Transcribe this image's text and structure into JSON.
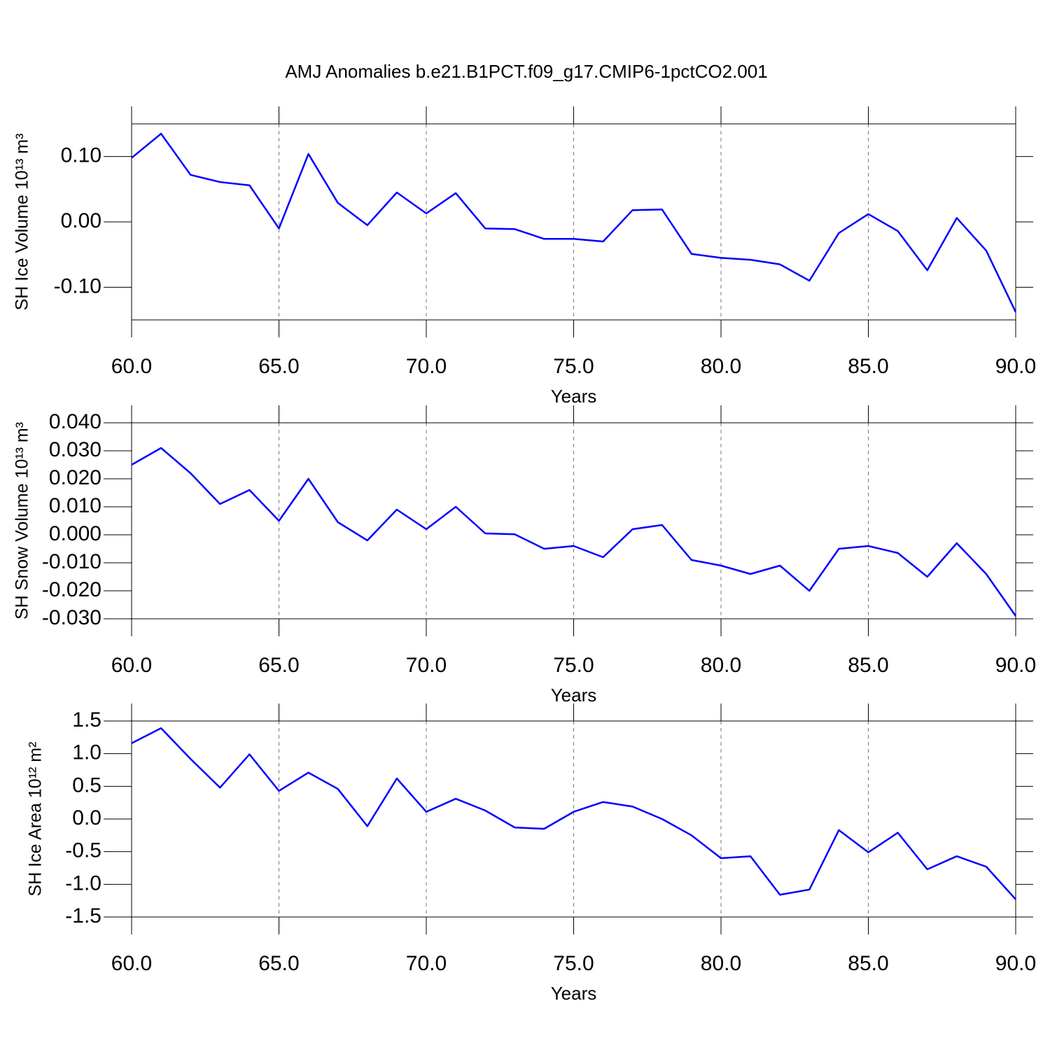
{
  "chart_data": [
    {
      "type": "line",
      "title": "AMJ Anomalies b.e21.B1PCT.f09_g17.CMIP6-1pctCO2.001",
      "ylabel": "SH Ice Volume 10¹³ m³",
      "xlabel": "Years",
      "color": "#0000ff",
      "grid": true,
      "x": [
        60,
        61,
        62,
        63,
        64,
        65,
        66,
        67,
        68,
        69,
        70,
        71,
        72,
        73,
        74,
        75,
        76,
        77,
        78,
        79,
        80,
        81,
        82,
        83,
        84,
        85,
        86,
        87,
        88,
        89,
        90
      ],
      "values": [
        0.098,
        0.135,
        0.072,
        0.061,
        0.056,
        -0.01,
        0.104,
        0.029,
        -0.005,
        0.045,
        0.013,
        0.044,
        -0.01,
        -0.011,
        -0.026,
        -0.026,
        -0.03,
        0.018,
        0.019,
        -0.049,
        -0.055,
        -0.058,
        -0.065,
        -0.09,
        -0.017,
        0.012,
        -0.014,
        -0.074,
        0.006,
        -0.044,
        -0.138
      ],
      "xlim": [
        60,
        90
      ],
      "xticks": [
        {
          "value": 60,
          "label": "60.0"
        },
        {
          "value": 65,
          "label": "65.0"
        },
        {
          "value": 70,
          "label": "70.0"
        },
        {
          "value": 75,
          "label": "75.0"
        },
        {
          "value": 80,
          "label": "80.0"
        },
        {
          "value": 85,
          "label": "85.0"
        },
        {
          "value": 90,
          "label": "90.0"
        }
      ],
      "ylim": [
        -0.15,
        0.15
      ],
      "yticks": [
        {
          "value": 0.1,
          "label": "0.10"
        },
        {
          "value": 0,
          "label": "0.00"
        },
        {
          "value": -0.1,
          "label": "-0.10"
        }
      ]
    },
    {
      "type": "line",
      "ylabel": "SH Snow Volume 10¹³ m³",
      "xlabel": "Years",
      "color": "#0000ff",
      "grid": true,
      "x": [
        60,
        61,
        62,
        63,
        64,
        65,
        66,
        67,
        68,
        69,
        70,
        71,
        72,
        73,
        74,
        75,
        76,
        77,
        78,
        79,
        80,
        81,
        82,
        83,
        84,
        85,
        86,
        87,
        88,
        89,
        90
      ],
      "values": [
        0.025,
        0.031,
        0.022,
        0.011,
        0.016,
        0.005,
        0.02,
        0.0045,
        -0.002,
        0.009,
        0.002,
        0.01,
        0.0005,
        0.0002,
        -0.005,
        -0.004,
        -0.008,
        0.002,
        0.0035,
        -0.009,
        -0.011,
        -0.014,
        -0.011,
        -0.02,
        -0.005,
        -0.004,
        -0.0065,
        -0.015,
        -0.003,
        -0.014,
        -0.029
      ],
      "xlim": [
        60,
        90
      ],
      "xticks": [
        {
          "value": 60,
          "label": "60.0"
        },
        {
          "value": 65,
          "label": "65.0"
        },
        {
          "value": 70,
          "label": "70.0"
        },
        {
          "value": 75,
          "label": "75.0"
        },
        {
          "value": 80,
          "label": "80.0"
        },
        {
          "value": 85,
          "label": "85.0"
        },
        {
          "value": 90,
          "label": "90.0"
        }
      ],
      "ylim": [
        -0.03,
        0.04
      ],
      "yticks": [
        {
          "value": 0.04,
          "label": "0.040"
        },
        {
          "value": 0.03,
          "label": "0.030"
        },
        {
          "value": 0.02,
          "label": "0.020"
        },
        {
          "value": 0.01,
          "label": "0.010"
        },
        {
          "value": 0,
          "label": "0.000"
        },
        {
          "value": -0.01,
          "label": "-0.010"
        },
        {
          "value": -0.02,
          "label": "-0.020"
        },
        {
          "value": -0.03,
          "label": "-0.030"
        }
      ]
    },
    {
      "type": "line",
      "ylabel": "SH Ice Area 10¹² m²",
      "xlabel": "Years",
      "color": "#0000ff",
      "grid": true,
      "x": [
        60,
        61,
        62,
        63,
        64,
        65,
        66,
        67,
        68,
        69,
        70,
        71,
        72,
        73,
        74,
        75,
        76,
        77,
        78,
        79,
        80,
        81,
        82,
        83,
        84,
        85,
        86,
        87,
        88,
        89,
        90
      ],
      "values": [
        1.16,
        1.39,
        0.92,
        0.48,
        0.99,
        0.43,
        0.71,
        0.46,
        -0.11,
        0.62,
        0.11,
        0.31,
        0.13,
        -0.13,
        -0.15,
        0.11,
        0.26,
        0.19,
        0.0,
        -0.25,
        -0.6,
        -0.57,
        -1.16,
        -1.08,
        -0.17,
        -0.51,
        -0.21,
        -0.77,
        -0.57,
        -0.73,
        -1.23
      ],
      "xlim": [
        60,
        90
      ],
      "xticks": [
        {
          "value": 60,
          "label": "60.0"
        },
        {
          "value": 65,
          "label": "65.0"
        },
        {
          "value": 70,
          "label": "70.0"
        },
        {
          "value": 75,
          "label": "75.0"
        },
        {
          "value": 80,
          "label": "80.0"
        },
        {
          "value": 85,
          "label": "85.0"
        },
        {
          "value": 90,
          "label": "90.0"
        }
      ],
      "ylim": [
        -1.5,
        1.5
      ],
      "yticks": [
        1.5,
        {
          "value": 1,
          "label": "1.0"
        },
        0.5,
        {
          "value": 0,
          "label": "0.0"
        },
        -0.5,
        {
          "value": -1,
          "label": "-1.0"
        },
        -1.5
      ]
    }
  ]
}
